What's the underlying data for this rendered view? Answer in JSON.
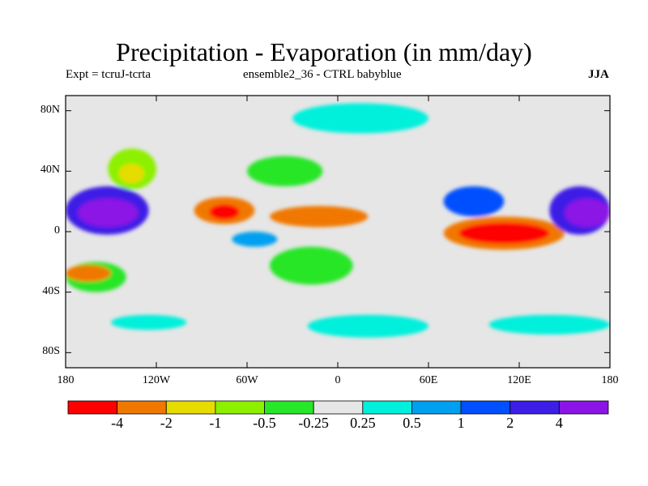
{
  "chart_data": {
    "type": "heatmap",
    "title": "Precipitation - Evaporation (in mm/day)",
    "subtitle_left": "Expt = tcruJ-tcrta",
    "subtitle_center": "ensemble2_36 - CTRL babyblue",
    "season": "JJA",
    "x": {
      "range": [
        -180,
        180
      ],
      "ticks": [
        {
          "value": -180,
          "label": "180"
        },
        {
          "value": -120,
          "label": "120W"
        },
        {
          "value": -60,
          "label": "60W"
        },
        {
          "value": 0,
          "label": "0"
        },
        {
          "value": 60,
          "label": "60E"
        },
        {
          "value": 120,
          "label": "120E"
        },
        {
          "value": 180,
          "label": "180"
        }
      ]
    },
    "y": {
      "range": [
        -90,
        90
      ],
      "ticks": [
        {
          "value": 80,
          "label": "80N"
        },
        {
          "value": 40,
          "label": "40N"
        },
        {
          "value": 0,
          "label": "0"
        },
        {
          "value": -40,
          "label": "40S"
        },
        {
          "value": -80,
          "label": "80S"
        }
      ]
    },
    "colorbar": {
      "colors": [
        "#ff0000",
        "#f07800",
        "#e6dc00",
        "#8cf000",
        "#28e628",
        "#e6e6e6",
        "#00f0dc",
        "#00a0f0",
        "#0050ff",
        "#3c1ee6",
        "#8c14e6"
      ],
      "boundaries": [
        "-4",
        "-2",
        "-1",
        "-0.5",
        "-0.25",
        "0.25",
        "0.5",
        "1",
        "2",
        "4"
      ]
    },
    "background_color": "#e6e6e6",
    "regions": [
      {
        "name": "north-pacific-south-blob",
        "lon": [
          -180,
          -125
        ],
        "lat": [
          -2,
          30
        ],
        "color": "#3c1ee6"
      },
      {
        "name": "east-pacific-core",
        "lon": [
          -172,
          -132
        ],
        "lat": [
          3,
          22
        ],
        "color": "#8c14e6"
      },
      {
        "name": "south-pacific-band",
        "lon": [
          -180,
          -140
        ],
        "lat": [
          -40,
          -20
        ],
        "color": "#28e628"
      },
      {
        "name": "south-pacific-dry",
        "lon": [
          -180,
          -150
        ],
        "lat": [
          -33,
          -22
        ],
        "color": "#f07800"
      },
      {
        "name": "ne-pacific-green",
        "lon": [
          -152,
          -120
        ],
        "lat": [
          28,
          55
        ],
        "color": "#8cf000"
      },
      {
        "name": "ne-pacific-yellow",
        "lon": [
          -145,
          -128
        ],
        "lat": [
          32,
          45
        ],
        "color": "#e6dc00"
      },
      {
        "name": "central-america-dry",
        "lon": [
          -95,
          -55
        ],
        "lat": [
          5,
          23
        ],
        "color": "#f07800"
      },
      {
        "name": "caribbean-core",
        "lon": [
          -85,
          -65
        ],
        "lat": [
          8,
          18
        ],
        "color": "#ff0000"
      },
      {
        "name": "tropical-atlantic-dry",
        "lon": [
          -45,
          20
        ],
        "lat": [
          3,
          17
        ],
        "color": "#f07800"
      },
      {
        "name": "amazon-blue",
        "lon": [
          -70,
          -40
        ],
        "lat": [
          -10,
          0
        ],
        "color": "#00a0f0"
      },
      {
        "name": "south-atlantic-green",
        "lon": [
          -45,
          10
        ],
        "lat": [
          -35,
          -10
        ],
        "color": "#28e628"
      },
      {
        "name": "indian-ocean-dry",
        "lon": [
          70,
          150
        ],
        "lat": [
          -12,
          10
        ],
        "color": "#f07800"
      },
      {
        "name": "maritime-continent-core",
        "lon": [
          80,
          140
        ],
        "lat": [
          -8,
          6
        ],
        "color": "#ff0000"
      },
      {
        "name": "india-blue",
        "lon": [
          70,
          110
        ],
        "lat": [
          10,
          30
        ],
        "color": "#0050ff"
      },
      {
        "name": "west-pacific-wet",
        "lon": [
          140,
          180
        ],
        "lat": [
          -2,
          30
        ],
        "color": "#3c1ee6"
      },
      {
        "name": "west-pacific-core",
        "lon": [
          150,
          180
        ],
        "lat": [
          3,
          22
        ],
        "color": "#8c14e6"
      },
      {
        "name": "north-atlantic-green",
        "lon": [
          -60,
          -10
        ],
        "lat": [
          30,
          50
        ],
        "color": "#28e628"
      },
      {
        "name": "arctic-cyan",
        "lon": [
          -30,
          60
        ],
        "lat": [
          65,
          85
        ],
        "color": "#00f0dc"
      },
      {
        "name": "southern-ocean-cyan-1",
        "lon": [
          -20,
          60
        ],
        "lat": [
          -70,
          -55
        ],
        "color": "#00f0dc"
      },
      {
        "name": "southern-ocean-cyan-2",
        "lon": [
          100,
          180
        ],
        "lat": [
          -68,
          -55
        ],
        "color": "#00f0dc"
      },
      {
        "name": "southern-ocean-cyan-3",
        "lon": [
          -150,
          -100
        ],
        "lat": [
          -65,
          -55
        ],
        "color": "#00f0dc"
      }
    ]
  }
}
